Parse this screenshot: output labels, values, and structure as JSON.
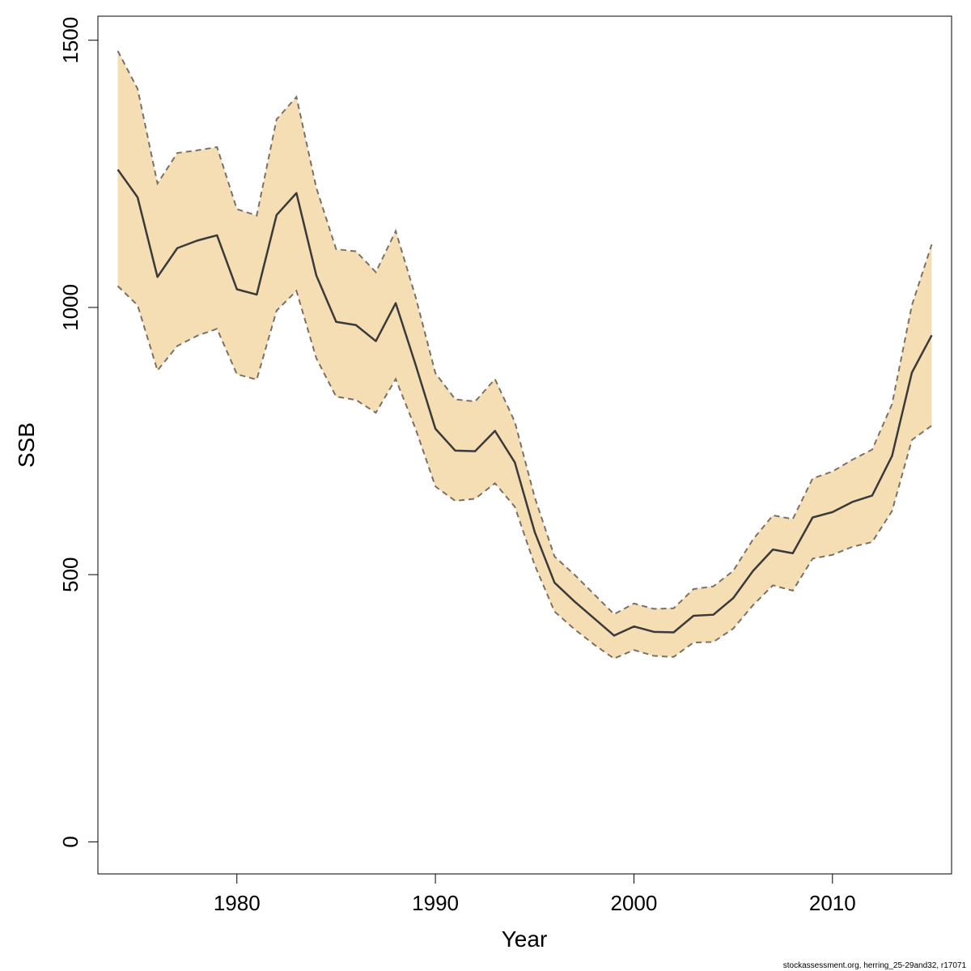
{
  "chart_data": {
    "type": "area",
    "xlabel": "Year",
    "ylabel": "SSB",
    "xlim": [
      1973,
      2016
    ],
    "ylim": [
      -60,
      1545
    ],
    "x_ticks": [
      1980,
      1990,
      2000,
      2010
    ],
    "y_ticks": [
      0,
      500,
      1000,
      1500
    ],
    "grid": false,
    "band_color": "#f5deb3",
    "band_border_color": "#7a7066",
    "line_color": "#3a3a3a",
    "x": [
      1974,
      1975,
      1976,
      1977,
      1978,
      1979,
      1980,
      1981,
      1982,
      1983,
      1984,
      1985,
      1986,
      1987,
      1988,
      1989,
      1990,
      1991,
      1992,
      1993,
      1994,
      1995,
      1996,
      1997,
      1998,
      1999,
      2000,
      2001,
      2002,
      2003,
      2004,
      2005,
      2006,
      2007,
      2008,
      2009,
      2010,
      2011,
      2012,
      2013,
      2014,
      2015
    ],
    "series": [
      {
        "values": [
          1258,
          1206,
          1057,
          1111,
          1125,
          1135,
          1034,
          1024,
          1173,
          1214,
          1060,
          973,
          967,
          937,
          1008,
          893,
          773,
          732,
          731,
          769,
          710,
          580,
          485,
          450,
          418,
          386,
          403,
          393,
          392,
          423,
          425,
          456,
          507,
          547,
          540,
          607,
          617,
          636,
          648,
          722,
          878,
          948
        ]
      },
      {
        "values": [
          1480,
          1409,
          1232,
          1289,
          1294,
          1300,
          1184,
          1172,
          1352,
          1394,
          1224,
          1109,
          1105,
          1066,
          1143,
          1020,
          877,
          828,
          824,
          866,
          786,
          645,
          534,
          500,
          463,
          426,
          446,
          436,
          437,
          473,
          478,
          507,
          566,
          611,
          604,
          680,
          693,
          715,
          734,
          819,
          1004,
          1118
        ]
      },
      {
        "values": [
          1040,
          1004,
          882,
          928,
          947,
          960,
          875,
          865,
          994,
          1031,
          905,
          833,
          827,
          803,
          866,
          773,
          665,
          638,
          642,
          671,
          627,
          518,
          431,
          398,
          369,
          343,
          359,
          348,
          346,
          373,
          374,
          399,
          443,
          480,
          470,
          530,
          537,
          552,
          561,
          619,
          752,
          779
        ]
      }
    ]
  },
  "footer": "stockassessment.org, herring_25-29and32, r17071"
}
